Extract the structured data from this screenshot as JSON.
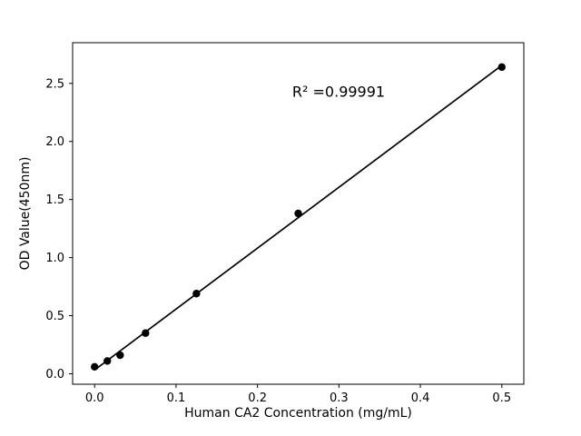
{
  "figure": {
    "background": "#ffffff"
  },
  "chart_data": {
    "type": "scatter",
    "title": "",
    "xlabel": "Human CA2 Concentration (mg/mL)",
    "ylabel": "OD Value(450nm)",
    "annotation": "R² =0.99991",
    "points": {
      "x": [
        0.0,
        0.0156,
        0.0313,
        0.0625,
        0.125,
        0.25,
        0.5
      ],
      "y": [
        0.06,
        0.11,
        0.16,
        0.35,
        0.69,
        1.38,
        2.64
      ]
    },
    "fit": {
      "type": "linear",
      "r_squared": 0.99991,
      "show_line": true
    },
    "xlim": [
      -0.027,
      0.527
    ],
    "ylim": [
      -0.09,
      2.85
    ],
    "xticks": {
      "values": [
        0.0,
        0.1,
        0.2,
        0.3,
        0.4,
        0.5
      ],
      "labels": [
        "0.0",
        "0.1",
        "0.2",
        "0.3",
        "0.4",
        "0.5"
      ]
    },
    "yticks": {
      "values": [
        0.0,
        0.5,
        1.0,
        1.5,
        2.0,
        2.5
      ],
      "labels": [
        "0.0",
        "0.5",
        "1.0",
        "1.5",
        "2.0",
        "2.5"
      ]
    },
    "marker_color": "#000000",
    "line_color": "#000000",
    "axis_color": "#000000",
    "grid": false,
    "legend": "none"
  }
}
